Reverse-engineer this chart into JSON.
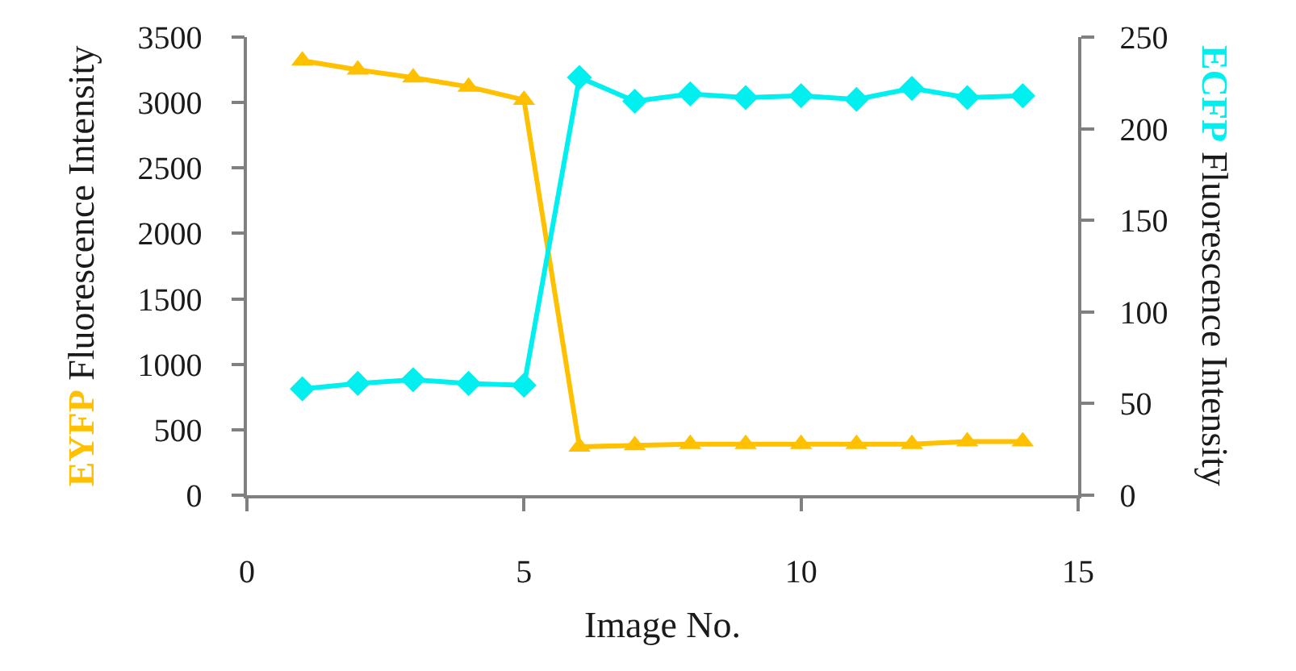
{
  "chart_data": {
    "type": "line",
    "x": [
      1,
      2,
      3,
      4,
      5,
      6,
      7,
      8,
      9,
      10,
      11,
      12,
      13,
      14
    ],
    "series": [
      {
        "color": "#ffc000",
        "marker": "triangle",
        "values": [
          3320,
          3250,
          3190,
          3120,
          3020,
          370,
          380,
          390,
          390,
          390,
          390,
          390,
          410,
          410
        ]
      },
      {
        "color": "#00f0f0",
        "marker": "diamond",
        "axis": "y2",
        "values": [
          58,
          61,
          63,
          61,
          60,
          228,
          215,
          219,
          217,
          218,
          216,
          222,
          217,
          218
        ]
      }
    ],
    "xlabel": "Image No.",
    "ylabel": "EYFP Fluorescence Intensity",
    "y2label": "ECFP Fluorescence Intensity",
    "xlim": [
      0,
      15
    ],
    "xticks": [
      0,
      5,
      10,
      15
    ],
    "ylim": [
      0,
      3500
    ],
    "yticks": [
      0,
      500,
      1000,
      1500,
      2000,
      2500,
      3000,
      3500
    ],
    "y2lim": [
      0,
      250
    ],
    "y2ticks": [
      0,
      50,
      100,
      150,
      200,
      250
    ]
  }
}
